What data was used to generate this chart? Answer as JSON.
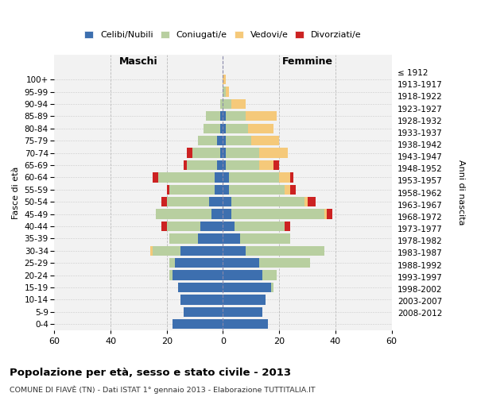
{
  "age_groups": [
    "0-4",
    "5-9",
    "10-14",
    "15-19",
    "20-24",
    "25-29",
    "30-34",
    "35-39",
    "40-44",
    "45-49",
    "50-54",
    "55-59",
    "60-64",
    "65-69",
    "70-74",
    "75-79",
    "80-84",
    "85-89",
    "90-94",
    "95-99",
    "100+"
  ],
  "birth_years": [
    "2008-2012",
    "2003-2007",
    "1998-2002",
    "1993-1997",
    "1988-1992",
    "1983-1987",
    "1978-1982",
    "1973-1977",
    "1968-1972",
    "1963-1967",
    "1958-1962",
    "1953-1957",
    "1948-1952",
    "1943-1947",
    "1938-1942",
    "1933-1937",
    "1928-1932",
    "1923-1927",
    "1918-1922",
    "1913-1917",
    "≤ 1912"
  ],
  "colors": {
    "celibe": "#3d6faf",
    "coniugato": "#b8cfa0",
    "vedovo": "#f5c97a",
    "divorziato": "#cc2222"
  },
  "males": {
    "celibe": [
      18,
      14,
      15,
      16,
      18,
      17,
      15,
      9,
      8,
      4,
      5,
      3,
      3,
      2,
      1,
      2,
      1,
      1,
      0,
      0,
      0
    ],
    "coniugato": [
      0,
      0,
      0,
      0,
      1,
      2,
      10,
      10,
      12,
      20,
      15,
      16,
      20,
      11,
      10,
      7,
      6,
      5,
      1,
      0,
      0
    ],
    "vedovo": [
      0,
      0,
      0,
      0,
      0,
      0,
      1,
      0,
      0,
      0,
      0,
      0,
      0,
      0,
      0,
      0,
      0,
      0,
      0,
      0,
      0
    ],
    "divorziato": [
      0,
      0,
      0,
      0,
      0,
      0,
      0,
      0,
      2,
      0,
      2,
      1,
      2,
      1,
      2,
      0,
      0,
      0,
      0,
      0,
      0
    ]
  },
  "females": {
    "nubile": [
      16,
      14,
      15,
      17,
      14,
      13,
      8,
      6,
      4,
      3,
      3,
      2,
      2,
      1,
      1,
      1,
      1,
      1,
      0,
      0,
      0
    ],
    "coniugata": [
      0,
      0,
      0,
      1,
      5,
      18,
      28,
      18,
      18,
      33,
      26,
      20,
      18,
      12,
      12,
      9,
      8,
      7,
      3,
      1,
      0
    ],
    "vedova": [
      0,
      0,
      0,
      0,
      0,
      0,
      0,
      0,
      0,
      1,
      1,
      2,
      4,
      5,
      10,
      10,
      9,
      11,
      5,
      1,
      1
    ],
    "divorziata": [
      0,
      0,
      0,
      0,
      0,
      0,
      0,
      0,
      2,
      2,
      3,
      2,
      1,
      2,
      0,
      0,
      0,
      0,
      0,
      0,
      0
    ]
  },
  "xlim": 60,
  "title_main": "Popolazione per età, sesso e stato civile - 2013",
  "title_sub": "COMUNE DI FIAVÈ (TN) - Dati ISTAT 1° gennaio 2013 - Elaborazione TUTTITALIA.IT",
  "label_maschi": "Maschi",
  "label_femmine": "Femmine",
  "ylabel_left": "Fasce di età",
  "ylabel_right": "Anni di nascita",
  "legend_labels": [
    "Celibi/Nubili",
    "Coniugati/e",
    "Vedovi/e",
    "Divorziati/e"
  ],
  "bg_color": "#ffffff",
  "plot_bg": "#f2f2f2",
  "grid_color": "#bbbbbb"
}
